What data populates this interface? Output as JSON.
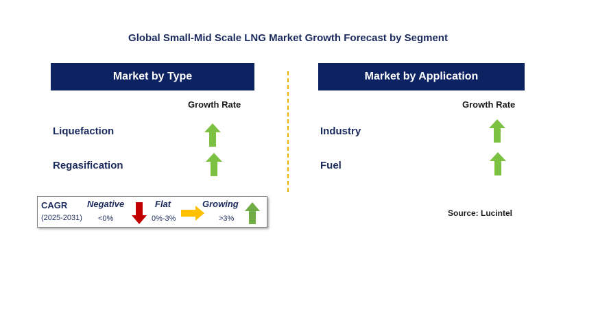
{
  "title": "Global Small-Mid Scale LNG Market Growth Forecast by Segment",
  "panels": [
    {
      "header": "Market by Type",
      "growth_rate_label": "Growth Rate",
      "rows": [
        {
          "label": "Liquefaction",
          "trend": "growing"
        },
        {
          "label": "Regasification",
          "trend": "growing"
        }
      ]
    },
    {
      "header": "Market by Application",
      "growth_rate_label": "Growth Rate",
      "rows": [
        {
          "label": "Industry",
          "trend": "growing"
        },
        {
          "label": "Fuel",
          "trend": "growing"
        }
      ]
    }
  ],
  "legend": {
    "cagr_label": "CAGR",
    "period": "(2025-2031)",
    "negative": {
      "label": "Negative",
      "range": "<0%",
      "icon": "down-arrow-icon",
      "color": "#c00000"
    },
    "flat": {
      "label": "Flat",
      "range": "0%-3%",
      "icon": "right-arrow-icon",
      "color": "#ffc000"
    },
    "growing": {
      "label": "Growing",
      "range": ">3%",
      "icon": "up-arrow-icon",
      "color": "#70ad47"
    }
  },
  "source": "Source: Lucintel",
  "colors": {
    "header_bg": "#0d2260",
    "divider": "#f0b400",
    "up_arrow": "#7cc142"
  }
}
